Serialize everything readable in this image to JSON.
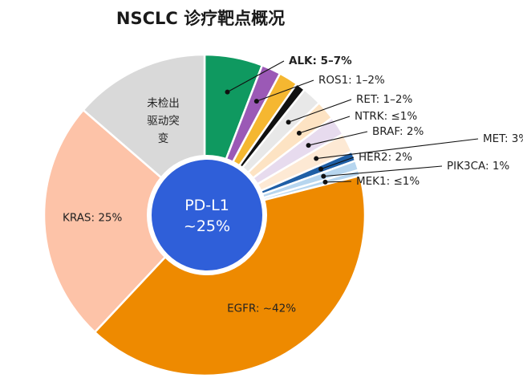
{
  "chart_data": {
    "type": "pie",
    "title": "NSCLC 诊疗靶点概况",
    "center_label": [
      "PD-L1",
      "~25%"
    ],
    "colors": {
      "ALK": "#0f9960",
      "ROS1": "#9b59b6",
      "RET": "#f5b731",
      "NTRK": "#111111",
      "BRAF_band": "#e8e8e8",
      "BRAF": "#fde3c3",
      "MET": "#e7dbee",
      "HER2": "#fde9d4",
      "PIK3CA": "#1f5fa6",
      "MEK1": "#b7d6ef",
      "EGFR": "#ee8a00",
      "KRAS": "#fdc3a8",
      "none": "#d9d9d9",
      "center": "#2f5fd9"
    },
    "slices": [
      {
        "key": "ALK",
        "value": 6,
        "label": "ALK: 5–7%",
        "bold": true,
        "leader": true
      },
      {
        "key": "ROS1",
        "value": 2,
        "label": "ROS1: 1–2%",
        "leader": true
      },
      {
        "key": "RET",
        "value": 2,
        "label": "",
        "leader": false
      },
      {
        "key": "NTRK",
        "value": 1,
        "label": "",
        "leader": false
      },
      {
        "key": "BRAF_band",
        "value": 2,
        "label": "RET: 1–2%",
        "leader": true
      },
      {
        "key": "BRAF",
        "value": 2,
        "label": "NTRK: ≤1%",
        "leader": true
      },
      {
        "key": "MET",
        "value": 2,
        "label": "BRAF: 2%",
        "leader": true
      },
      {
        "key": "HER2",
        "value": 2,
        "label": "MET: 3%",
        "leader": true
      },
      {
        "key": "PIK3CA",
        "value": 1,
        "label": "HER2: 2%",
        "leader": true
      },
      {
        "key": "MEK1",
        "value": 1,
        "label": "PIK3CA: 1%",
        "leader": true
      },
      {
        "key": "MEK1_b",
        "value": 0.6,
        "label": "MEK1: ≤1%",
        "leader": true
      },
      {
        "key": "EGFR",
        "value": 42,
        "label": "EGFR: ~42%",
        "leader": false
      },
      {
        "key": "KRAS",
        "value": 25,
        "label": "KRAS: 25%",
        "leader": false
      },
      {
        "key": "none",
        "value": 14,
        "label": "未检出|驱动突|变",
        "leader": false
      }
    ]
  }
}
